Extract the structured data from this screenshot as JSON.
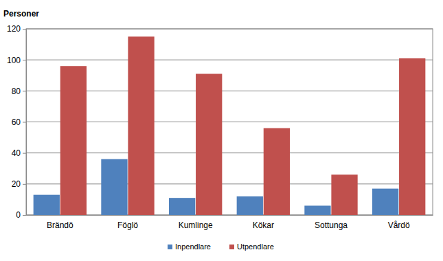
{
  "chart_data": {
    "type": "bar",
    "y_label": "Personer",
    "categories": [
      "Brändö",
      "Föglö",
      "Kumlinge",
      "Kökar",
      "Sottunga",
      "Vårdö"
    ],
    "series": [
      {
        "name": "Inpendlare",
        "color": "#4f81bd",
        "values": [
          13,
          36,
          11,
          12,
          6,
          17
        ]
      },
      {
        "name": "Utpendlare",
        "color": "#c0504d",
        "values": [
          96,
          115,
          91,
          56,
          26,
          101
        ]
      }
    ],
    "ylim": [
      0,
      120
    ],
    "yticks": [
      0,
      20,
      40,
      60,
      80,
      100,
      120
    ],
    "grid": true,
    "legend": "bottom"
  }
}
